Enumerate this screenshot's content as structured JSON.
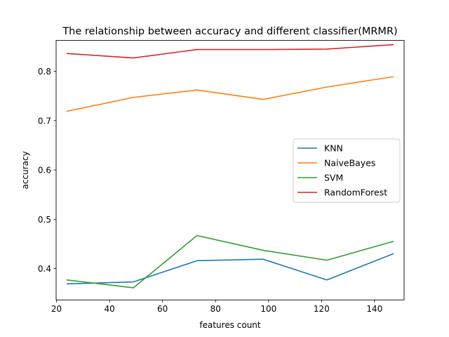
{
  "chart_data": {
    "type": "line",
    "title": "The relationship between accuracy and different classifier(MRMR)",
    "xlabel": "features count",
    "ylabel": "accuracy",
    "x": [
      24,
      49,
      73,
      98,
      122,
      147
    ],
    "xlim": [
      19.85,
      151.15
    ],
    "ylim": [
      0.3365,
      0.8625
    ],
    "xticks": [
      20,
      40,
      60,
      80,
      100,
      120,
      140
    ],
    "yticks": [
      0.4,
      0.5,
      0.6,
      0.7,
      0.8
    ],
    "grid": false,
    "legend_position": "center-right",
    "series": [
      {
        "name": "KNN",
        "color": "#1f77b4",
        "values": [
          0.369,
          0.373,
          0.416,
          0.419,
          0.377,
          0.43
        ]
      },
      {
        "name": "NaiveBayes",
        "color": "#ff7f0e",
        "values": [
          0.719,
          0.747,
          0.762,
          0.743,
          0.768,
          0.789
        ]
      },
      {
        "name": "SVM",
        "color": "#2ca02c",
        "values": [
          0.377,
          0.361,
          0.467,
          0.437,
          0.417,
          0.455
        ]
      },
      {
        "name": "RandomForest",
        "color": "#d62728",
        "values": [
          0.836,
          0.827,
          0.844,
          0.844,
          0.845,
          0.854
        ]
      }
    ]
  }
}
